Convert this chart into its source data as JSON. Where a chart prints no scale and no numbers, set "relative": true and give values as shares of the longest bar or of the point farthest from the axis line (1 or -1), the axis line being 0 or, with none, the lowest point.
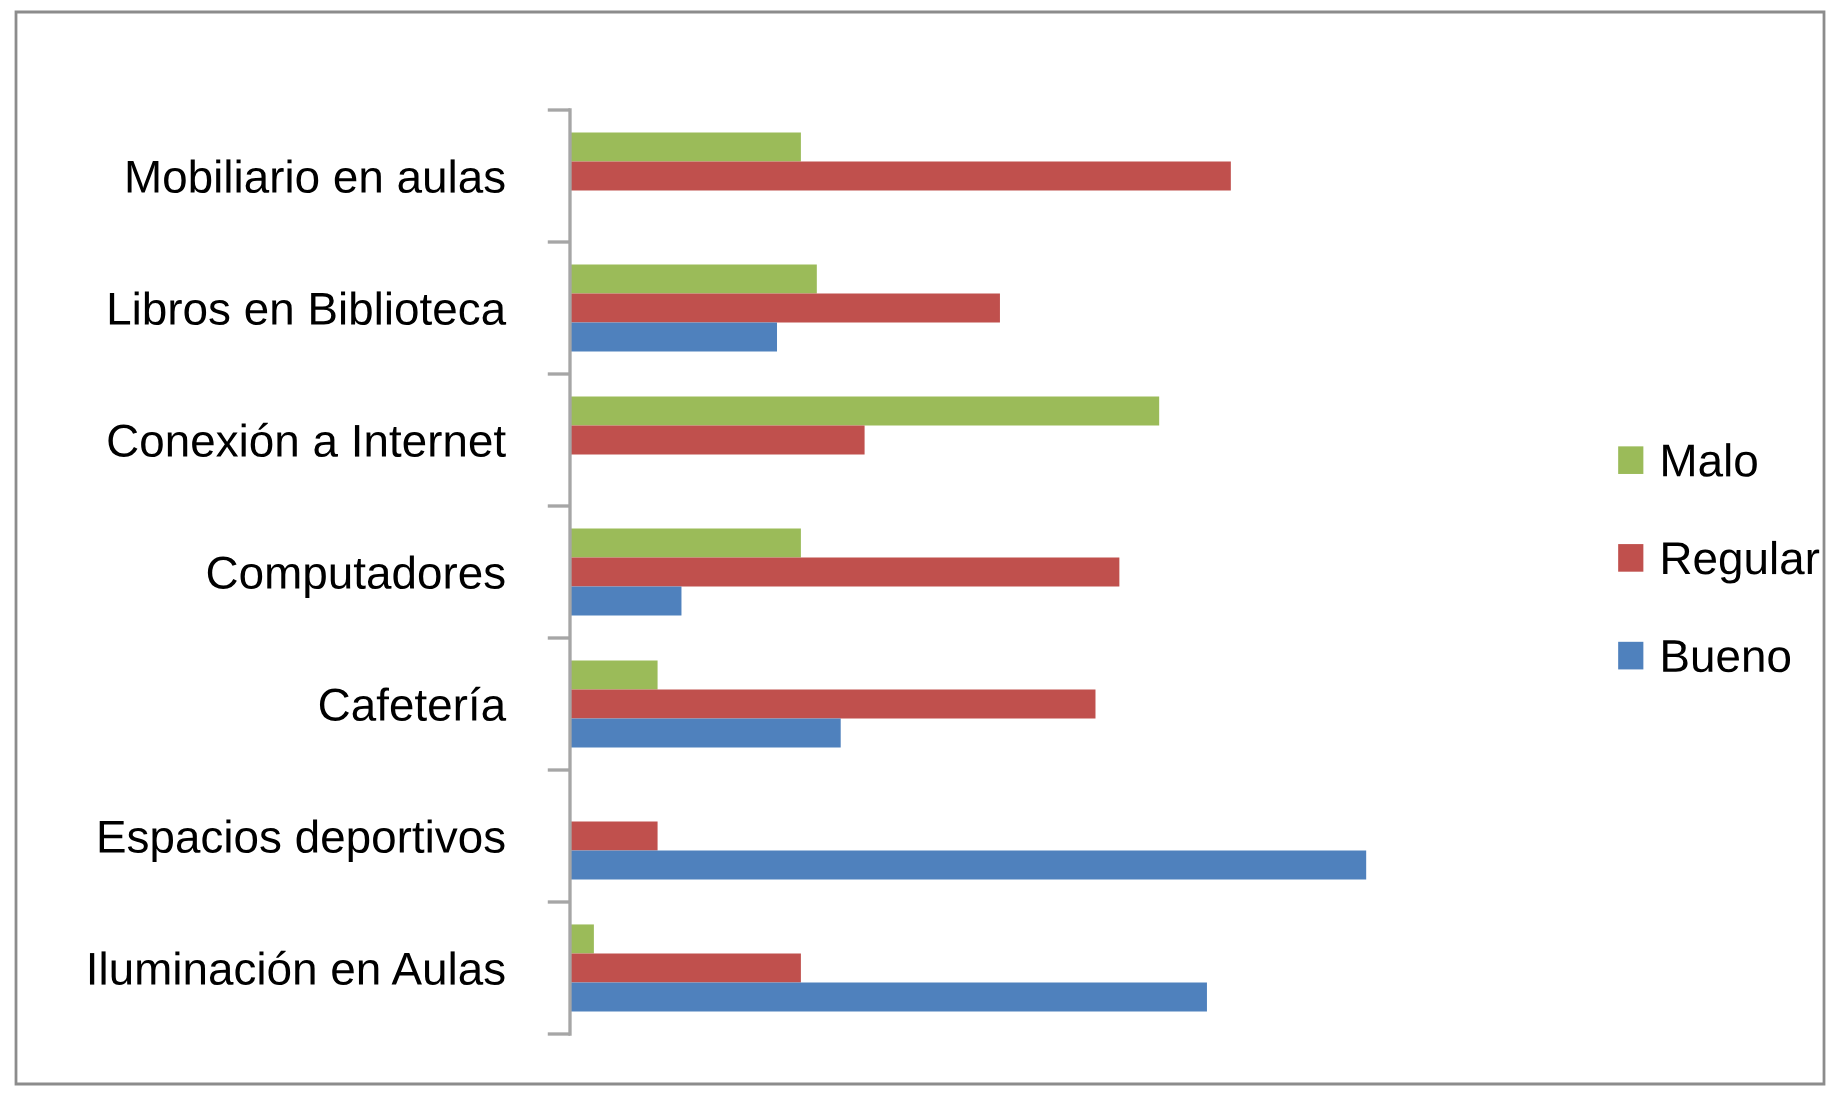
{
  "chart_data": {
    "type": "bar",
    "orientation": "horizontal",
    "relative": true,
    "categories": [
      "Mobiliario en aulas",
      "Libros en Biblioteca",
      "Conexión a Internet",
      "Computadores",
      "Cafetería",
      "Espacios deportivos",
      "Iluminación en Aulas"
    ],
    "series": [
      {
        "name": "Malo",
        "color": "#9bbb59",
        "values": [
          0.29,
          0.31,
          0.74,
          0.29,
          0.11,
          0,
          0.03
        ]
      },
      {
        "name": "Regular",
        "color": "#c0504d",
        "values": [
          0.83,
          0.54,
          0.37,
          0.69,
          0.66,
          0.11,
          0.29
        ]
      },
      {
        "name": "Bueno",
        "color": "#4f81bd",
        "values": [
          0,
          0.26,
          0,
          0.14,
          0.34,
          1,
          0.8
        ]
      }
    ],
    "legend": "right",
    "grid": false,
    "tick_labels": "y"
  }
}
